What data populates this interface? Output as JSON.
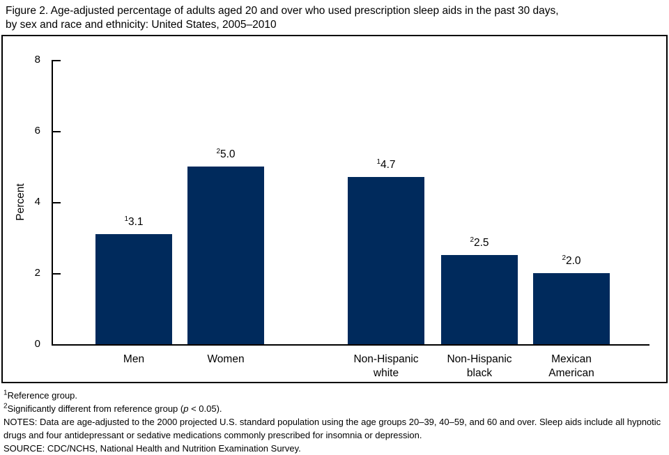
{
  "figure": {
    "title_lines": [
      "Figure 2. Age-adjusted percentage of adults aged 20 and over who used prescription sleep aids in the past 30 days,",
      "by sex and race and ethnicity: United States, 2005–2010"
    ]
  },
  "chart_data": {
    "type": "bar",
    "title": "Age-adjusted percentage of adults aged 20 and over who used prescription sleep aids in the past 30 days, by sex and race and ethnicity: United States, 2005–2010",
    "xlabel": "",
    "ylabel": "Percent",
    "ylim": [
      0,
      8
    ],
    "yticks": [
      0,
      2,
      4,
      6,
      8
    ],
    "grid": false,
    "legend": false,
    "bar_color": "#002a5c",
    "bars": [
      {
        "category": "Men",
        "category_lines": [
          "Men"
        ],
        "group": "sex",
        "value": 3.1,
        "value_label": "3.1",
        "footnote_marker": "1"
      },
      {
        "category": "Women",
        "category_lines": [
          "Women"
        ],
        "group": "sex",
        "value": 5.0,
        "value_label": "5.0",
        "footnote_marker": "2"
      },
      {
        "category": "Non-Hispanic white",
        "category_lines": [
          "Non-Hispanic",
          "white"
        ],
        "group": "race and ethnicity",
        "value": 4.7,
        "value_label": "4.7",
        "footnote_marker": "1"
      },
      {
        "category": "Non-Hispanic black",
        "category_lines": [
          "Non-Hispanic",
          "black"
        ],
        "group": "race and ethnicity",
        "value": 2.5,
        "value_label": "2.5",
        "footnote_marker": "2"
      },
      {
        "category": "Mexican American",
        "category_lines": [
          "Mexican",
          "American"
        ],
        "group": "race and ethnicity",
        "value": 2.0,
        "value_label": "2.0",
        "footnote_marker": "2"
      }
    ]
  },
  "footnotes": [
    {
      "sup": "1",
      "segments": [
        {
          "text": "Reference group."
        }
      ]
    },
    {
      "sup": "2",
      "segments": [
        {
          "text": "Significantly different from reference group ("
        },
        {
          "text": "p",
          "italic": true
        },
        {
          "text": " < 0.05)."
        }
      ]
    },
    {
      "sup": "",
      "segments": [
        {
          "text": "NOTES: Data are age-adjusted to the 2000 projected U.S. standard population using the age groups 20–39, 40–59, and 60 and over. Sleep aids include all hypnotic drugs and four antidepressant or sedative medications commonly prescribed for insomnia or depression."
        }
      ]
    },
    {
      "sup": "",
      "segments": [
        {
          "text": "SOURCE: CDC/NCHS, National Health and Nutrition Examination Survey."
        }
      ]
    }
  ]
}
